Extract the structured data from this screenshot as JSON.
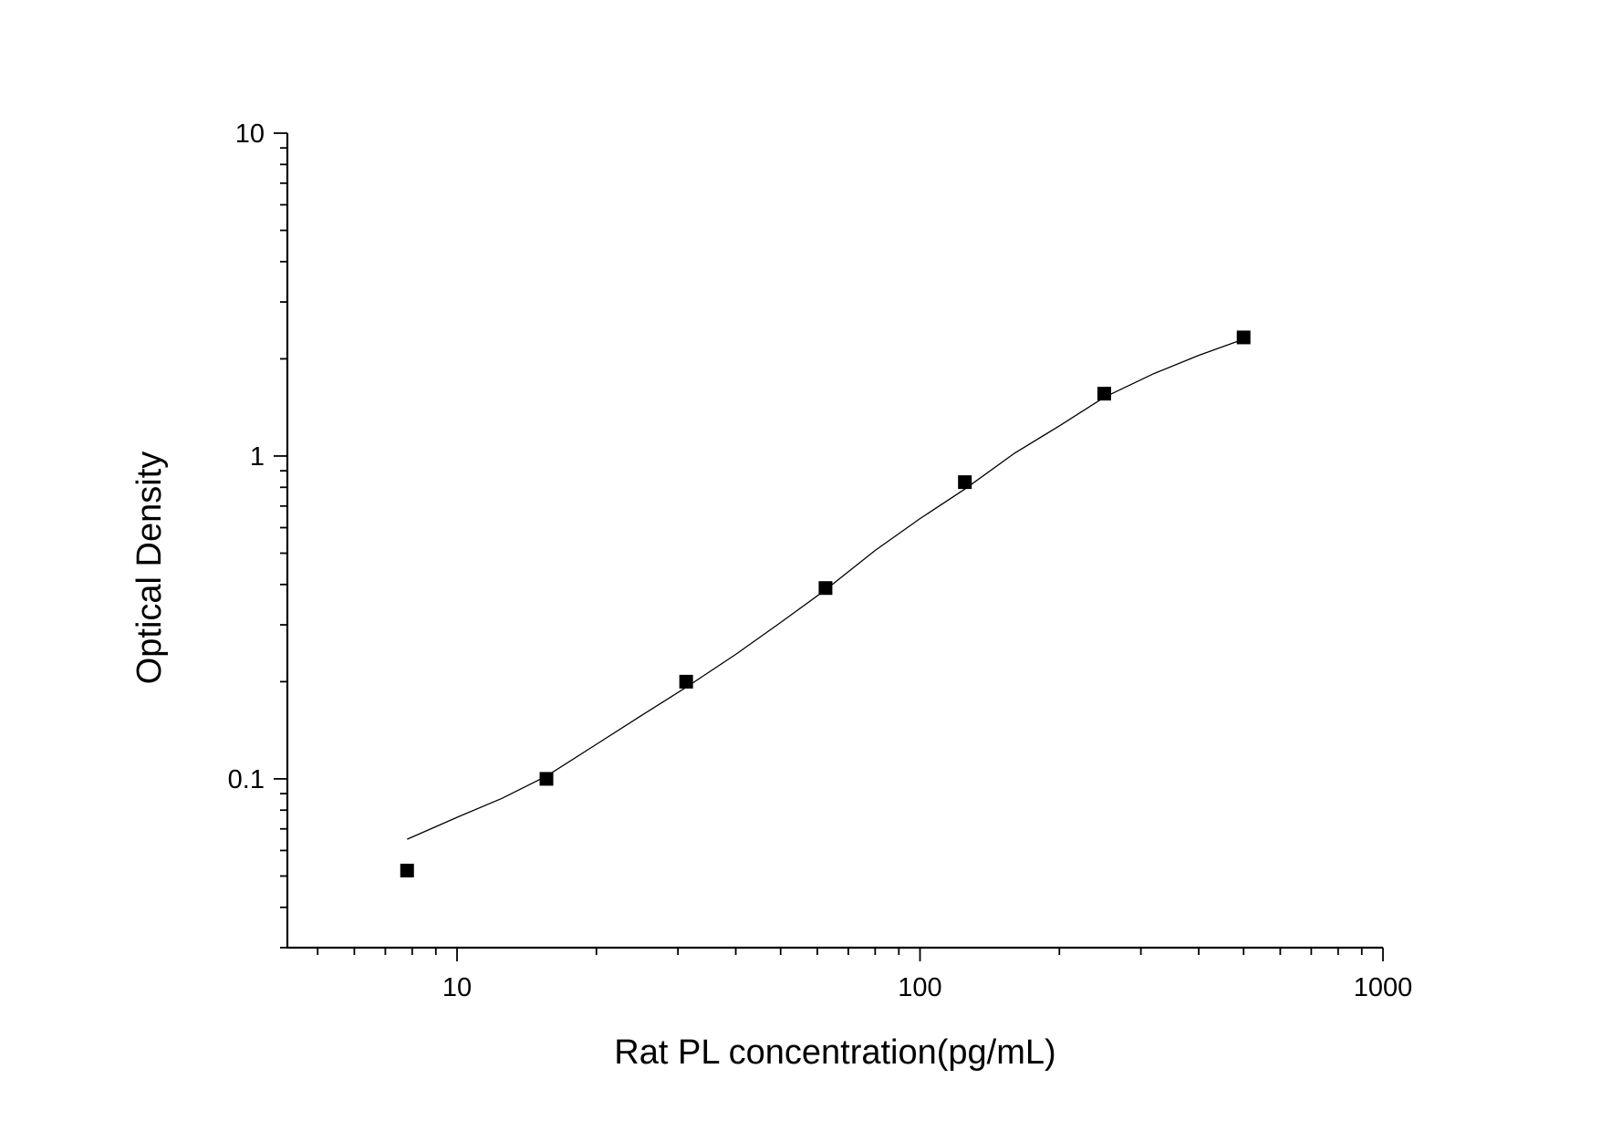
{
  "chart_data": {
    "type": "scatter",
    "title": "",
    "xlabel": "Rat PL concentration(pg/mL)",
    "ylabel": "Optical Density",
    "x_scale": "log",
    "y_scale": "log",
    "xlim": [
      4.3,
      1000
    ],
    "ylim": [
      0.03,
      10
    ],
    "x_ticks": [
      {
        "value": 10,
        "label": "10"
      },
      {
        "value": 100,
        "label": "100"
      },
      {
        "value": 1000,
        "label": "1000"
      }
    ],
    "y_ticks": [
      {
        "value": 0.1,
        "label": "0.1"
      },
      {
        "value": 1,
        "label": "1"
      },
      {
        "value": 10,
        "label": "10"
      }
    ],
    "grid": false,
    "legend": "none",
    "series": [
      {
        "marker": "square",
        "color": "#000000",
        "x": [
          7.8,
          15.6,
          31.25,
          62.5,
          125,
          250,
          500
        ],
        "y": [
          0.052,
          0.1,
          0.2,
          0.39,
          0.83,
          1.56,
          2.33
        ]
      }
    ],
    "fit_curve": {
      "color": "#000000",
      "x": [
        7.8,
        10,
        12.5,
        15.6,
        20,
        25,
        31.25,
        40,
        50,
        62.5,
        80,
        100,
        125,
        160,
        200,
        250,
        320,
        400,
        500
      ],
      "y": [
        0.065,
        0.076,
        0.087,
        0.102,
        0.128,
        0.157,
        0.192,
        0.243,
        0.305,
        0.385,
        0.51,
        0.64,
        0.79,
        1.02,
        1.24,
        1.52,
        1.8,
        2.05,
        2.3
      ]
    }
  }
}
